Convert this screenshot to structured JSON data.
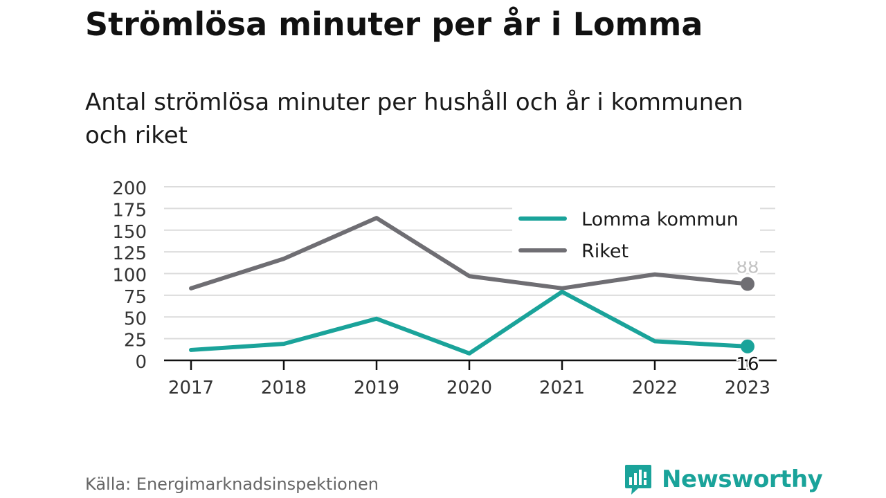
{
  "header": {
    "title": "Strömlösa minuter per år i Lomma",
    "subtitle": "Antal strömlösa minuter per hushåll och år i kommunen och riket"
  },
  "footer": {
    "source": "Källa: Energimarknadsinspektionen",
    "brand": "Newsworthy",
    "brand_icon": "newsworthy-logo-icon"
  },
  "chart_data": {
    "type": "line",
    "x": [
      2017,
      2018,
      2019,
      2020,
      2021,
      2022,
      2023
    ],
    "ylim": [
      0,
      200
    ],
    "yticks": [
      0,
      25,
      50,
      75,
      100,
      125,
      150,
      175,
      200
    ],
    "grid": true,
    "legend_position": "top-right",
    "series": [
      {
        "name": "Lomma kommun",
        "color": "#1aa39a",
        "values": [
          12,
          19,
          48,
          8,
          79,
          22,
          16
        ],
        "end_label": "16"
      },
      {
        "name": "Riket",
        "color": "#6f6e73",
        "values": [
          83,
          117,
          164,
          97,
          83,
          99,
          88
        ],
        "end_label": "88"
      }
    ]
  }
}
